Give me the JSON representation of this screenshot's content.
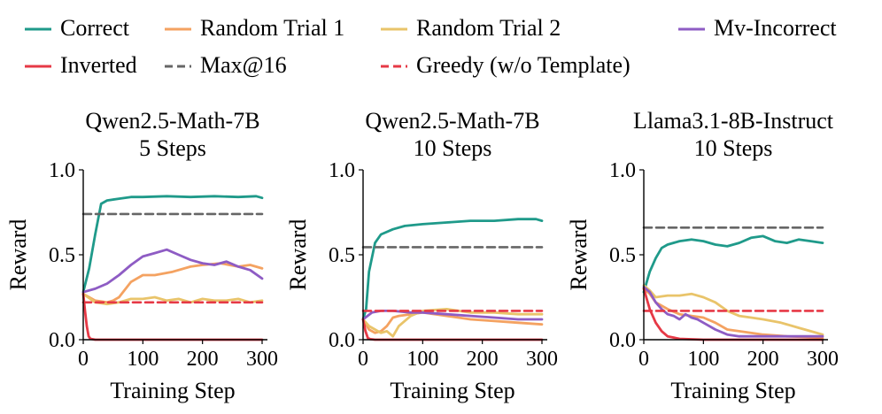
{
  "legend": {
    "entries": [
      {
        "name": "Correct",
        "color": "#1f9a8a",
        "style": "solid"
      },
      {
        "name": "Random Trial 1",
        "color": "#f4a261",
        "style": "solid"
      },
      {
        "name": "Random Trial 2",
        "color": "#e9c46a",
        "style": "solid"
      },
      {
        "name": "Mv-Incorrect",
        "color": "#8e5cc4",
        "style": "solid"
      },
      {
        "name": "Inverted",
        "color": "#e63946",
        "style": "solid"
      },
      {
        "name": "Max@16",
        "color": "#666666",
        "style": "dashed"
      },
      {
        "name": "Greedy (w/o Template)",
        "color": "#e63946",
        "style": "dashed"
      }
    ]
  },
  "chart_data": [
    {
      "type": "line",
      "title": [
        "Qwen2.5-Math-7B",
        "5 Steps"
      ],
      "xlabel": "Training Step",
      "ylabel": "Reward",
      "xlim": [
        0,
        300
      ],
      "ylim": [
        0,
        1.0
      ],
      "xticks": [
        0,
        100,
        200,
        300
      ],
      "yticks": [
        0.0,
        0.5,
        1.0
      ],
      "xtick_labels": [
        "0",
        "100",
        "200",
        "300"
      ],
      "ytick_labels": [
        "0.0",
        "0.5",
        "1.0"
      ],
      "series": [
        {
          "name": "Correct",
          "x": [
            0,
            10,
            20,
            30,
            40,
            60,
            80,
            100,
            140,
            180,
            220,
            260,
            290,
            300
          ],
          "y": [
            0.28,
            0.42,
            0.62,
            0.8,
            0.82,
            0.83,
            0.84,
            0.84,
            0.845,
            0.84,
            0.845,
            0.84,
            0.845,
            0.835
          ]
        },
        {
          "name": "Random Trial 1",
          "x": [
            0,
            20,
            40,
            50,
            60,
            80,
            100,
            120,
            150,
            180,
            200,
            230,
            260,
            280,
            300
          ],
          "y": [
            0.27,
            0.23,
            0.22,
            0.23,
            0.25,
            0.34,
            0.38,
            0.38,
            0.4,
            0.43,
            0.44,
            0.45,
            0.43,
            0.44,
            0.42
          ]
        },
        {
          "name": "Random Trial 2",
          "x": [
            0,
            20,
            40,
            60,
            80,
            100,
            120,
            140,
            160,
            180,
            200,
            220,
            240,
            260,
            280,
            300
          ],
          "y": [
            0.27,
            0.22,
            0.21,
            0.22,
            0.24,
            0.24,
            0.25,
            0.23,
            0.24,
            0.22,
            0.24,
            0.23,
            0.23,
            0.24,
            0.22,
            0.23
          ]
        },
        {
          "name": "Mv-Incorrect",
          "x": [
            0,
            20,
            40,
            60,
            80,
            100,
            120,
            140,
            160,
            180,
            200,
            220,
            240,
            260,
            280,
            300
          ],
          "y": [
            0.28,
            0.3,
            0.33,
            0.38,
            0.44,
            0.49,
            0.51,
            0.53,
            0.5,
            0.47,
            0.45,
            0.44,
            0.46,
            0.43,
            0.41,
            0.36
          ]
        },
        {
          "name": "Inverted",
          "x": [
            0,
            3,
            6,
            9,
            12,
            20,
            40,
            100,
            200,
            300
          ],
          "y": [
            0.27,
            0.17,
            0.08,
            0.02,
            0.005,
            0,
            0,
            0,
            0,
            0
          ]
        },
        {
          "name": "Max@16",
          "x": [
            0,
            300
          ],
          "y": [
            0.74,
            0.74
          ]
        },
        {
          "name": "Greedy (w/o Template)",
          "x": [
            0,
            300
          ],
          "y": [
            0.22,
            0.22
          ]
        }
      ]
    },
    {
      "type": "line",
      "title": [
        "Qwen2.5-Math-7B",
        "10 Steps"
      ],
      "xlabel": "Training Step",
      "ylabel": "Reward",
      "xlim": [
        0,
        300
      ],
      "ylim": [
        0,
        1.0
      ],
      "xticks": [
        0,
        100,
        200,
        300
      ],
      "yticks": [
        0.0,
        0.5,
        1.0
      ],
      "xtick_labels": [
        "0",
        "100",
        "200",
        "300"
      ],
      "ytick_labels": [
        "0.0",
        "0.5",
        "1.0"
      ],
      "series": [
        {
          "name": "Correct",
          "x": [
            0,
            5,
            10,
            20,
            30,
            50,
            70,
            100,
            140,
            180,
            220,
            260,
            290,
            300
          ],
          "y": [
            0.12,
            0.18,
            0.4,
            0.57,
            0.62,
            0.65,
            0.67,
            0.68,
            0.69,
            0.7,
            0.7,
            0.71,
            0.71,
            0.7
          ]
        },
        {
          "name": "Random Trial 1",
          "x": [
            0,
            10,
            20,
            30,
            40,
            50,
            60,
            80,
            100,
            140,
            180,
            220,
            260,
            300
          ],
          "y": [
            0.12,
            0.06,
            0.04,
            0.05,
            0.08,
            0.13,
            0.14,
            0.15,
            0.16,
            0.14,
            0.12,
            0.11,
            0.1,
            0.09
          ]
        },
        {
          "name": "Random Trial 2",
          "x": [
            0,
            10,
            20,
            30,
            40,
            50,
            60,
            80,
            100,
            140,
            180,
            220,
            260,
            300
          ],
          "y": [
            0.12,
            0.08,
            0.06,
            0.04,
            0.05,
            0.02,
            0.08,
            0.14,
            0.17,
            0.18,
            0.16,
            0.16,
            0.15,
            0.15
          ]
        },
        {
          "name": "Mv-Incorrect",
          "x": [
            0,
            15,
            30,
            50,
            80,
            100,
            140,
            180,
            220,
            260,
            300
          ],
          "y": [
            0.12,
            0.16,
            0.17,
            0.17,
            0.16,
            0.16,
            0.15,
            0.14,
            0.13,
            0.12,
            0.12
          ]
        },
        {
          "name": "Inverted",
          "x": [
            0,
            4,
            8,
            12,
            20,
            40,
            100,
            200,
            300
          ],
          "y": [
            0.12,
            0.05,
            0.01,
            0.003,
            0,
            0,
            0,
            0,
            0
          ]
        },
        {
          "name": "Max@16",
          "x": [
            0,
            300
          ],
          "y": [
            0.545,
            0.545
          ]
        },
        {
          "name": "Greedy (w/o Template)",
          "x": [
            0,
            300
          ],
          "y": [
            0.17,
            0.17
          ]
        }
      ]
    },
    {
      "type": "line",
      "title": [
        "Llama3.1-8B-Instruct",
        "10 Steps"
      ],
      "xlabel": "Training Step",
      "ylabel": "Reward",
      "xlim": [
        0,
        300
      ],
      "ylim": [
        0,
        1.0
      ],
      "xticks": [
        0,
        100,
        200,
        300
      ],
      "yticks": [
        0.0,
        0.5,
        1.0
      ],
      "xtick_labels": [
        "0",
        "100",
        "200",
        "300"
      ],
      "ytick_labels": [
        "0.0",
        "0.5",
        "1.0"
      ],
      "series": [
        {
          "name": "Correct",
          "x": [
            0,
            10,
            20,
            30,
            40,
            60,
            80,
            100,
            120,
            140,
            160,
            180,
            200,
            220,
            240,
            260,
            280,
            300
          ],
          "y": [
            0.28,
            0.4,
            0.48,
            0.54,
            0.56,
            0.58,
            0.59,
            0.58,
            0.56,
            0.55,
            0.57,
            0.6,
            0.61,
            0.58,
            0.57,
            0.59,
            0.58,
            0.57
          ]
        },
        {
          "name": "Random Trial 1",
          "x": [
            0,
            10,
            20,
            40,
            60,
            80,
            100,
            120,
            140,
            160,
            200,
            240,
            280,
            300
          ],
          "y": [
            0.3,
            0.27,
            0.22,
            0.18,
            0.15,
            0.14,
            0.13,
            0.1,
            0.06,
            0.05,
            0.03,
            0.02,
            0.015,
            0.01
          ]
        },
        {
          "name": "Random Trial 2",
          "x": [
            0,
            10,
            20,
            40,
            60,
            80,
            100,
            120,
            140,
            160,
            180,
            200,
            230,
            260,
            280,
            300
          ],
          "y": [
            0.32,
            0.29,
            0.25,
            0.26,
            0.26,
            0.27,
            0.25,
            0.22,
            0.17,
            0.14,
            0.13,
            0.12,
            0.1,
            0.07,
            0.05,
            0.03
          ]
        },
        {
          "name": "Mv-Incorrect",
          "x": [
            0,
            10,
            20,
            30,
            40,
            50,
            60,
            70,
            80,
            90,
            100,
            120,
            140,
            160,
            200,
            240,
            280,
            300
          ],
          "y": [
            0.31,
            0.28,
            0.22,
            0.18,
            0.15,
            0.14,
            0.12,
            0.15,
            0.13,
            0.12,
            0.1,
            0.06,
            0.03,
            0.02,
            0.02,
            0.02,
            0.02,
            0.02
          ]
        },
        {
          "name": "Inverted",
          "x": [
            0,
            10,
            20,
            30,
            40,
            60,
            100,
            200,
            300
          ],
          "y": [
            0.3,
            0.18,
            0.1,
            0.05,
            0.02,
            0.005,
            0,
            0,
            0
          ]
        },
        {
          "name": "Max@16",
          "x": [
            0,
            300
          ],
          "y": [
            0.66,
            0.66
          ]
        },
        {
          "name": "Greedy (w/o Template)",
          "x": [
            0,
            300
          ],
          "y": [
            0.17,
            0.17
          ]
        }
      ]
    }
  ]
}
